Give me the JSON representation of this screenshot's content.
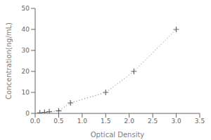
{
  "chart_data": {
    "type": "line",
    "x": [
      0.1,
      0.2,
      0.3,
      0.5,
      0.75,
      1.5,
      2.1,
      3.0
    ],
    "values": [
      0.3,
      0.5,
      0.8,
      1.2,
      5.0,
      10.0,
      20.0,
      40.0
    ],
    "xlabel": "Optical Density",
    "ylabel": "Concentration(ng/mL)",
    "xlim": [
      0,
      3.5
    ],
    "ylim": [
      0,
      50
    ],
    "xticks": [
      {
        "value": 0,
        "label": "0.0"
      },
      0.5,
      {
        "value": 1.0,
        "label": "1.0"
      },
      1.5,
      {
        "value": 2.0,
        "label": "2.0"
      },
      2.5,
      {
        "value": 3.0,
        "label": "3.0"
      },
      3.5
    ],
    "yticks": [
      0,
      10,
      20,
      30,
      40,
      50
    ],
    "color": "#666666",
    "marker": "plus",
    "line_style": "dotted",
    "grid": false
  }
}
